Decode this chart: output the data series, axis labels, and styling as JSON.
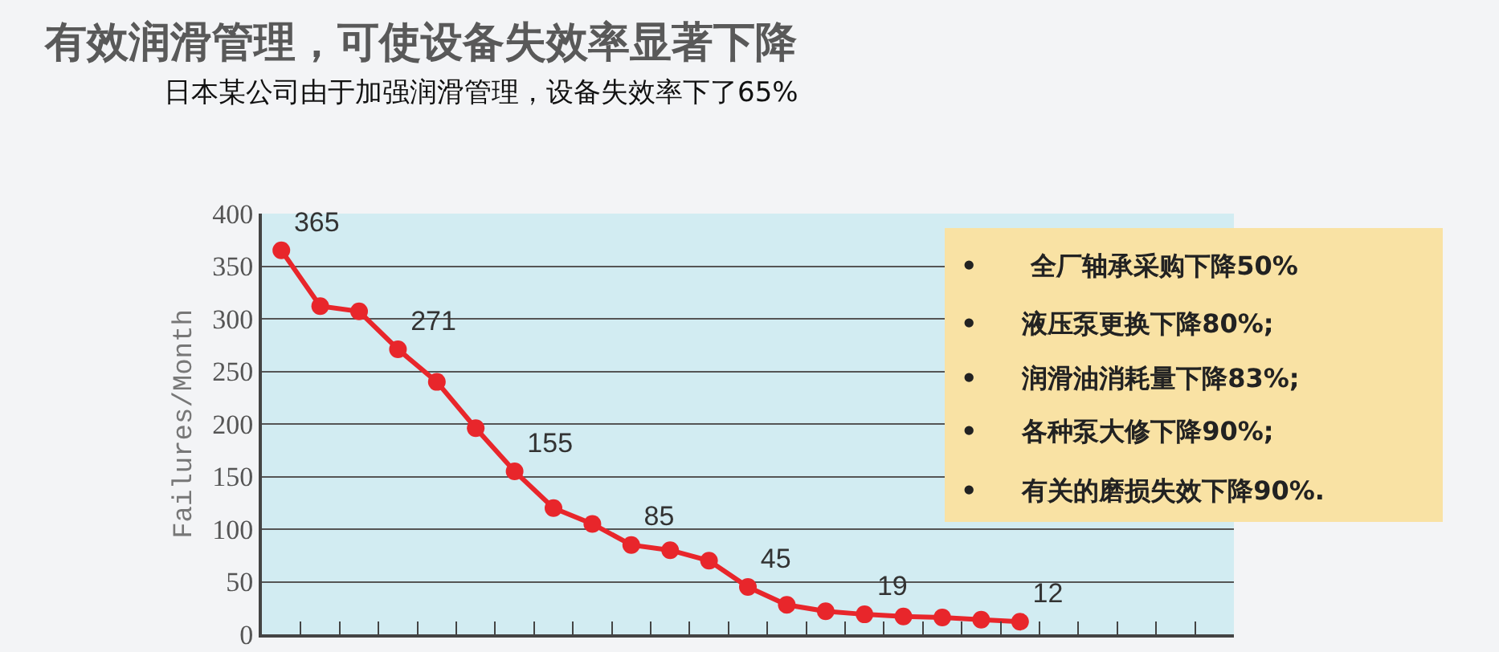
{
  "chart_data": {
    "type": "line",
    "title": "有效润滑管理，可使设备失效率显著下降",
    "subtitle": "日本某公司由于加强润滑管理，设备失效率下了65%",
    "ylabel": "Failures/Month",
    "categories": [
      null,
      null,
      null,
      null,
      null,
      null,
      null,
      null,
      null,
      null,
      null,
      null,
      null,
      null,
      null,
      null,
      null,
      null,
      null,
      null,
      null,
      null,
      null,
      null,
      null
    ],
    "series": [
      {
        "color": "#e8262b",
        "values": [
          365,
          312,
          307,
          271,
          240,
          196,
          155,
          120,
          105,
          85,
          80,
          70,
          45,
          28,
          22,
          19,
          17,
          16,
          14,
          12,
          null,
          null,
          null,
          null,
          null
        ],
        "value_labels": [
          "365",
          null,
          null,
          "271",
          null,
          null,
          "155",
          null,
          null,
          "85",
          null,
          null,
          "45",
          null,
          null,
          "19",
          null,
          null,
          null,
          "12",
          null,
          null,
          null,
          null,
          null
        ]
      }
    ],
    "ylim": [
      0,
      400
    ],
    "yticks": [
      0,
      50,
      100,
      150,
      200,
      250,
      300,
      350,
      400
    ],
    "grid": "y",
    "marker": "circle",
    "line_style": "solid",
    "tick_labels": "y",
    "annotations": [
      "•      全厂轴承采购下降50%",
      "•     液压泵更换下降80%;",
      "•     润滑油消耗量下降83%;",
      "•     各种泵大修下降90%;",
      "•     有关的磨损失效下降90%."
    ]
  }
}
